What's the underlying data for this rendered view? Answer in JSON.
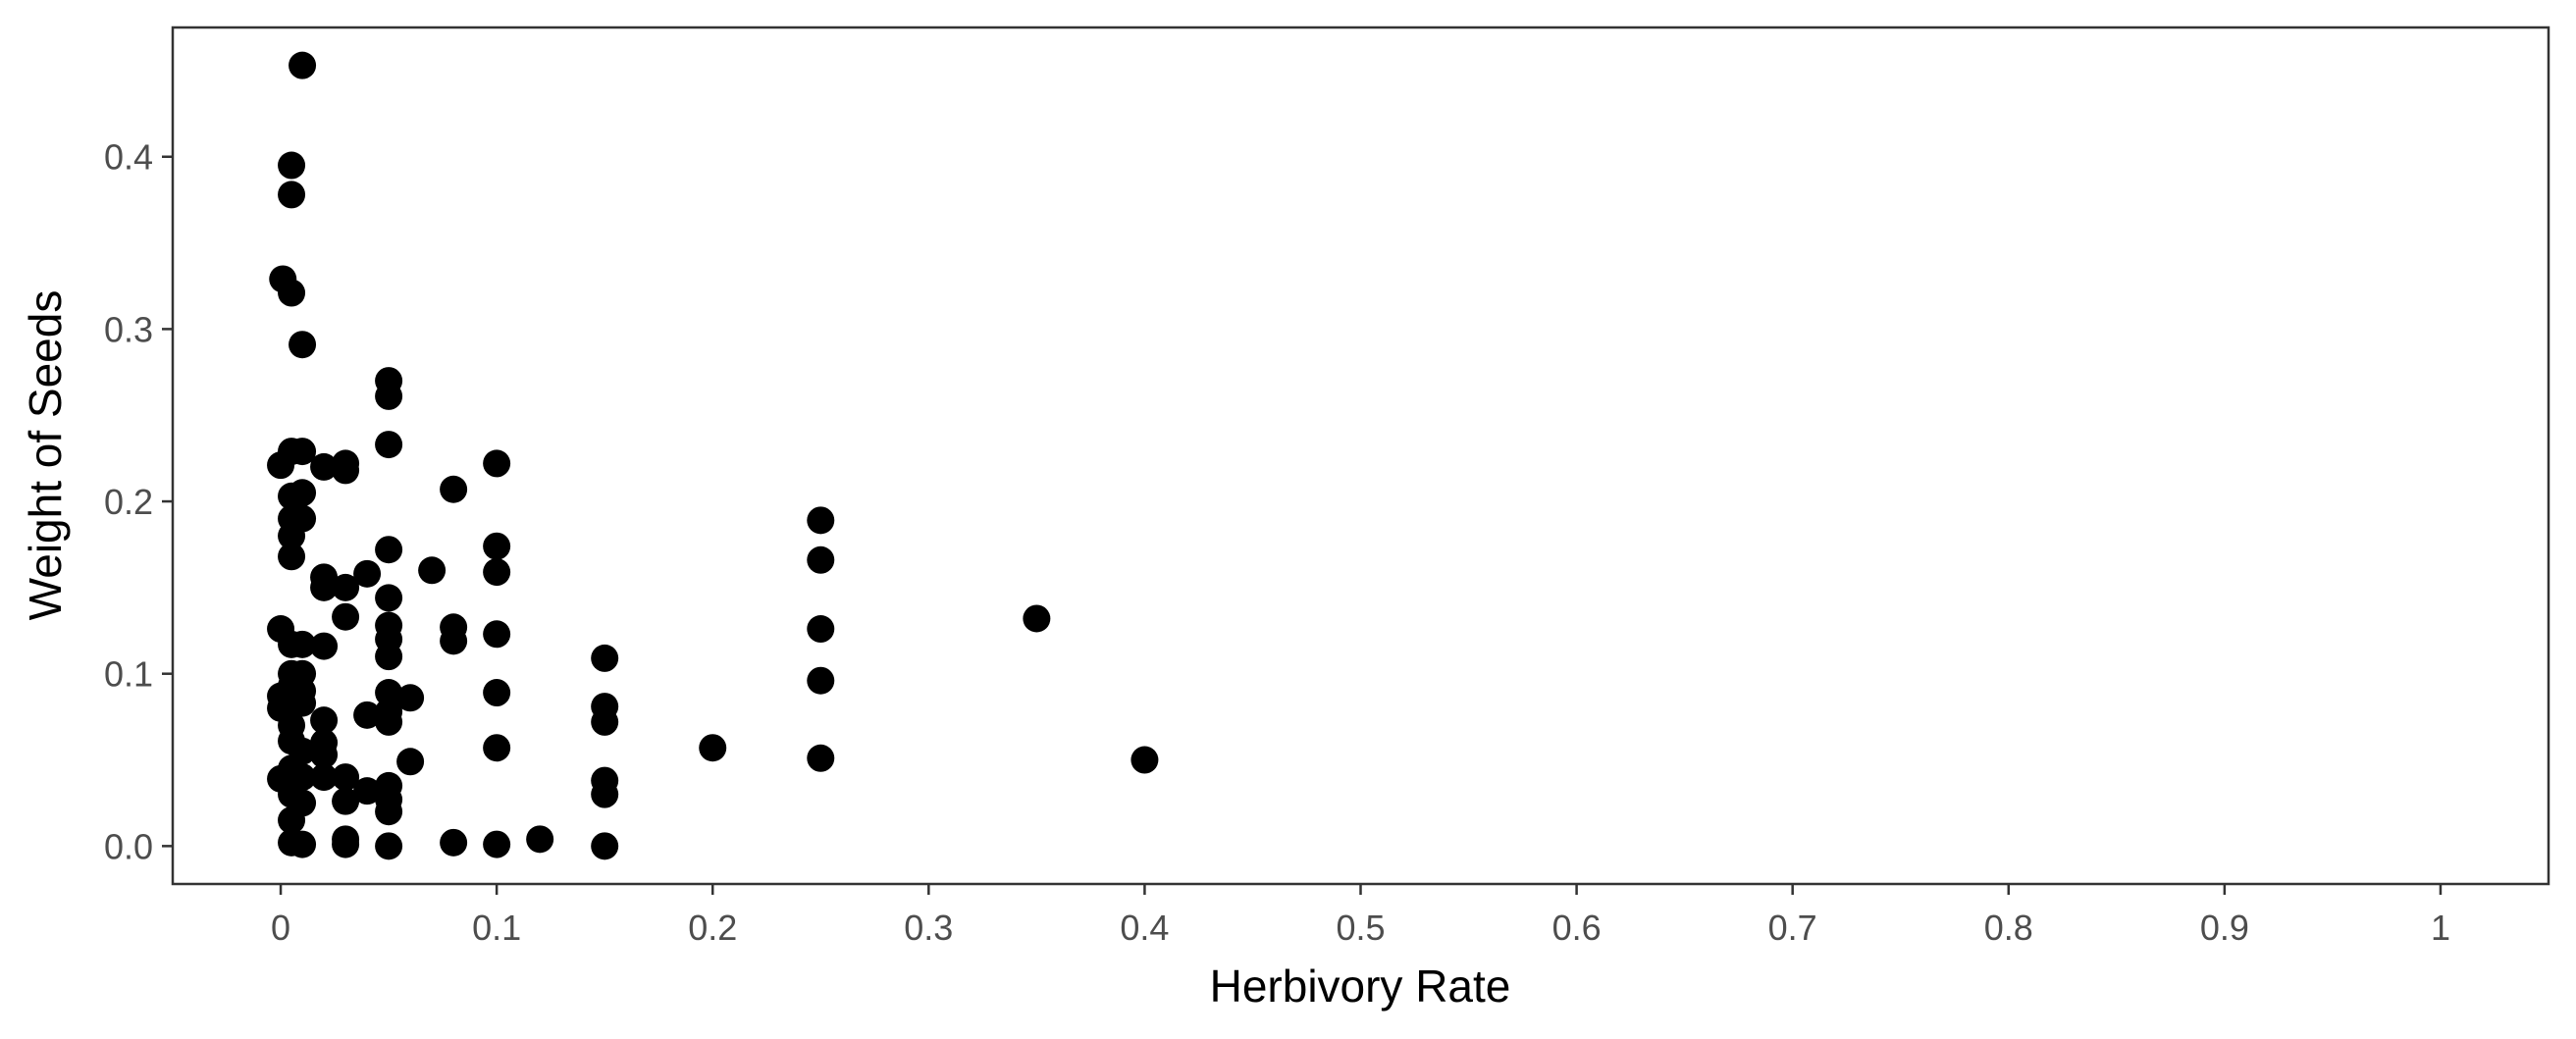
{
  "chart_data": {
    "type": "scatter",
    "title": "",
    "xlabel": "Herbivory Rate",
    "ylabel": "Weight of Seeds",
    "xlim": [
      -0.05,
      1.05
    ],
    "ylim": [
      -0.022,
      0.475
    ],
    "x_ticks": [
      0,
      0.1,
      0.2,
      0.3,
      0.4,
      0.5,
      0.6,
      0.7,
      0.8,
      0.9,
      1
    ],
    "x_tick_labels": [
      "0",
      "0.1",
      "0.2",
      "0.3",
      "0.4",
      "0.5",
      "0.6",
      "0.7",
      "0.8",
      "0.9",
      "1"
    ],
    "y_ticks": [
      0,
      0.1,
      0.2,
      0.3,
      0.4
    ],
    "y_tick_labels": [
      "0.0",
      "0.1",
      "0.2",
      "0.3",
      "0.4"
    ],
    "grid": false,
    "legend": "none",
    "point_color": "#000000",
    "series": [
      {
        "points": [
          [
            0.01,
            0.453
          ],
          [
            0.005,
            0.395
          ],
          [
            0.005,
            0.378
          ],
          [
            0.001,
            0.329
          ],
          [
            0.005,
            0.321
          ],
          [
            0.01,
            0.291
          ],
          [
            0.0,
            0.221
          ],
          [
            0.005,
            0.229
          ],
          [
            0.01,
            0.229
          ],
          [
            0.005,
            0.203
          ],
          [
            0.01,
            0.205
          ],
          [
            0.005,
            0.19
          ],
          [
            0.01,
            0.19
          ],
          [
            0.005,
            0.18
          ],
          [
            0.005,
            0.168
          ],
          [
            0.0,
            0.126
          ],
          [
            0.005,
            0.117
          ],
          [
            0.01,
            0.117
          ],
          [
            0.005,
            0.1
          ],
          [
            0.01,
            0.1
          ],
          [
            0.005,
            0.093
          ],
          [
            0.01,
            0.09
          ],
          [
            0.0,
            0.087
          ],
          [
            0.0,
            0.08
          ],
          [
            0.005,
            0.083
          ],
          [
            0.01,
            0.083
          ],
          [
            0.005,
            0.07
          ],
          [
            0.005,
            0.061
          ],
          [
            0.01,
            0.055
          ],
          [
            0.0,
            0.039
          ],
          [
            0.005,
            0.045
          ],
          [
            0.01,
            0.04
          ],
          [
            0.005,
            0.03
          ],
          [
            0.01,
            0.025
          ],
          [
            0.005,
            0.015
          ],
          [
            0.005,
            0.002
          ],
          [
            0.01,
            0.001
          ],
          [
            0.02,
            0.22
          ],
          [
            0.03,
            0.222
          ],
          [
            0.03,
            0.218
          ],
          [
            0.02,
            0.156
          ],
          [
            0.02,
            0.15
          ],
          [
            0.03,
            0.15
          ],
          [
            0.04,
            0.158
          ],
          [
            0.03,
            0.133
          ],
          [
            0.02,
            0.116
          ],
          [
            0.04,
            0.076
          ],
          [
            0.02,
            0.073
          ],
          [
            0.02,
            0.06
          ],
          [
            0.02,
            0.053
          ],
          [
            0.02,
            0.04
          ],
          [
            0.03,
            0.04
          ],
          [
            0.04,
            0.032
          ],
          [
            0.03,
            0.026
          ],
          [
            0.03,
            0.004
          ],
          [
            0.03,
            0.001
          ],
          [
            0.05,
            0.27
          ],
          [
            0.05,
            0.261
          ],
          [
            0.05,
            0.233
          ],
          [
            0.05,
            0.172
          ],
          [
            0.05,
            0.144
          ],
          [
            0.05,
            0.128
          ],
          [
            0.05,
            0.12
          ],
          [
            0.05,
            0.11
          ],
          [
            0.05,
            0.089
          ],
          [
            0.05,
            0.078
          ],
          [
            0.05,
            0.072
          ],
          [
            0.05,
            0.035
          ],
          [
            0.05,
            0.027
          ],
          [
            0.05,
            0.02
          ],
          [
            0.05,
            0.0
          ],
          [
            0.06,
            0.086
          ],
          [
            0.06,
            0.049
          ],
          [
            0.07,
            0.16
          ],
          [
            0.08,
            0.207
          ],
          [
            0.08,
            0.127
          ],
          [
            0.08,
            0.119
          ],
          [
            0.08,
            0.002
          ],
          [
            0.1,
            0.222
          ],
          [
            0.1,
            0.174
          ],
          [
            0.1,
            0.159
          ],
          [
            0.1,
            0.123
          ],
          [
            0.1,
            0.089
          ],
          [
            0.1,
            0.057
          ],
          [
            0.1,
            0.001
          ],
          [
            0.12,
            0.004
          ],
          [
            0.15,
            0.109
          ],
          [
            0.15,
            0.081
          ],
          [
            0.15,
            0.072
          ],
          [
            0.15,
            0.038
          ],
          [
            0.15,
            0.03
          ],
          [
            0.15,
            0.0
          ],
          [
            0.2,
            0.057
          ],
          [
            0.25,
            0.189
          ],
          [
            0.25,
            0.166
          ],
          [
            0.25,
            0.126
          ],
          [
            0.25,
            0.096
          ],
          [
            0.25,
            0.051
          ],
          [
            0.35,
            0.132
          ],
          [
            0.4,
            0.05
          ]
        ]
      }
    ]
  }
}
